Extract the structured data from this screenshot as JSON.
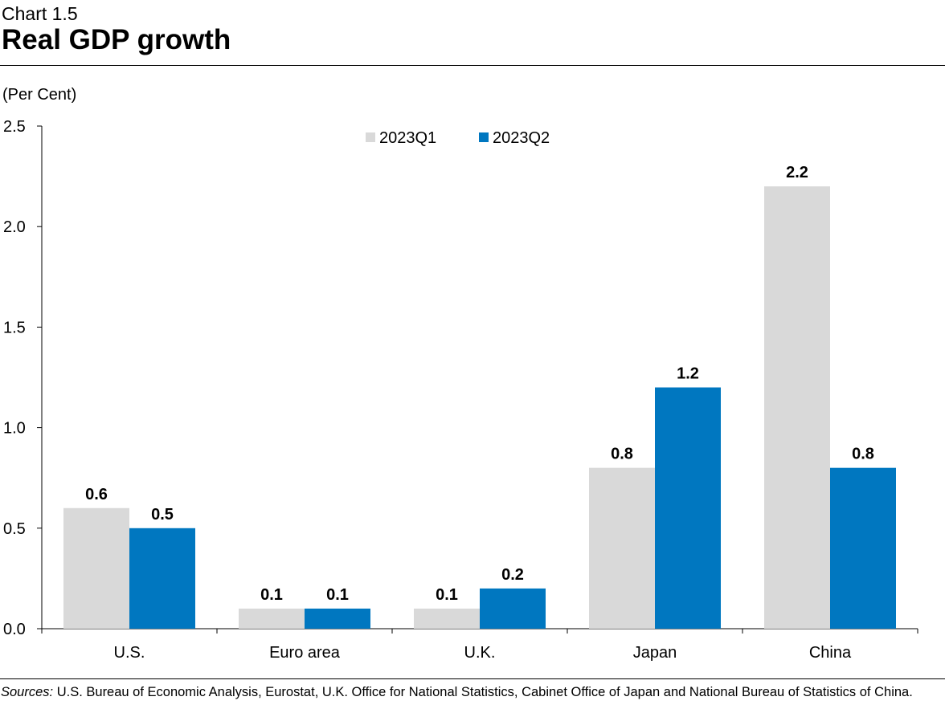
{
  "header": {
    "chart_number": "Chart 1.5",
    "title": "Real GDP growth"
  },
  "unit_label": "(Per Cent)",
  "sources": {
    "lead": "Sources:",
    "text": " U.S. Bureau of Economic Analysis, Eurostat, U.K. Office for National Statistics, Cabinet Office of Japan and National Bureau of Statistics of China."
  },
  "colors": {
    "series_q1": "#d9d9d9",
    "series_q2": "#0077c0",
    "axis": "#000000"
  },
  "chart_data": {
    "type": "bar",
    "title": "Real GDP growth",
    "xlabel": "",
    "ylabel": "(Per Cent)",
    "categories": [
      "U.S.",
      "Euro area",
      "U.K.",
      "Japan",
      "China"
    ],
    "series": [
      {
        "name": "2023Q1",
        "values": [
          0.6,
          0.1,
          0.1,
          0.8,
          2.2
        ],
        "labels": [
          "0.6",
          "0.1",
          "0.1",
          "0.8",
          "2.2"
        ]
      },
      {
        "name": "2023Q2",
        "values": [
          0.5,
          0.1,
          0.2,
          1.2,
          0.8
        ],
        "labels": [
          "0.5",
          "0.1",
          "0.2",
          "1.2",
          "0.8"
        ]
      }
    ],
    "ylim": [
      0,
      2.5
    ],
    "yticks": [
      0,
      0.5,
      1,
      1.5,
      2,
      2.5
    ],
    "ytick_labels": [
      "0.0",
      "0.5",
      "1.0",
      "1.5",
      "2.0",
      "2.5"
    ],
    "grid": false,
    "legend_position": "top-center"
  }
}
